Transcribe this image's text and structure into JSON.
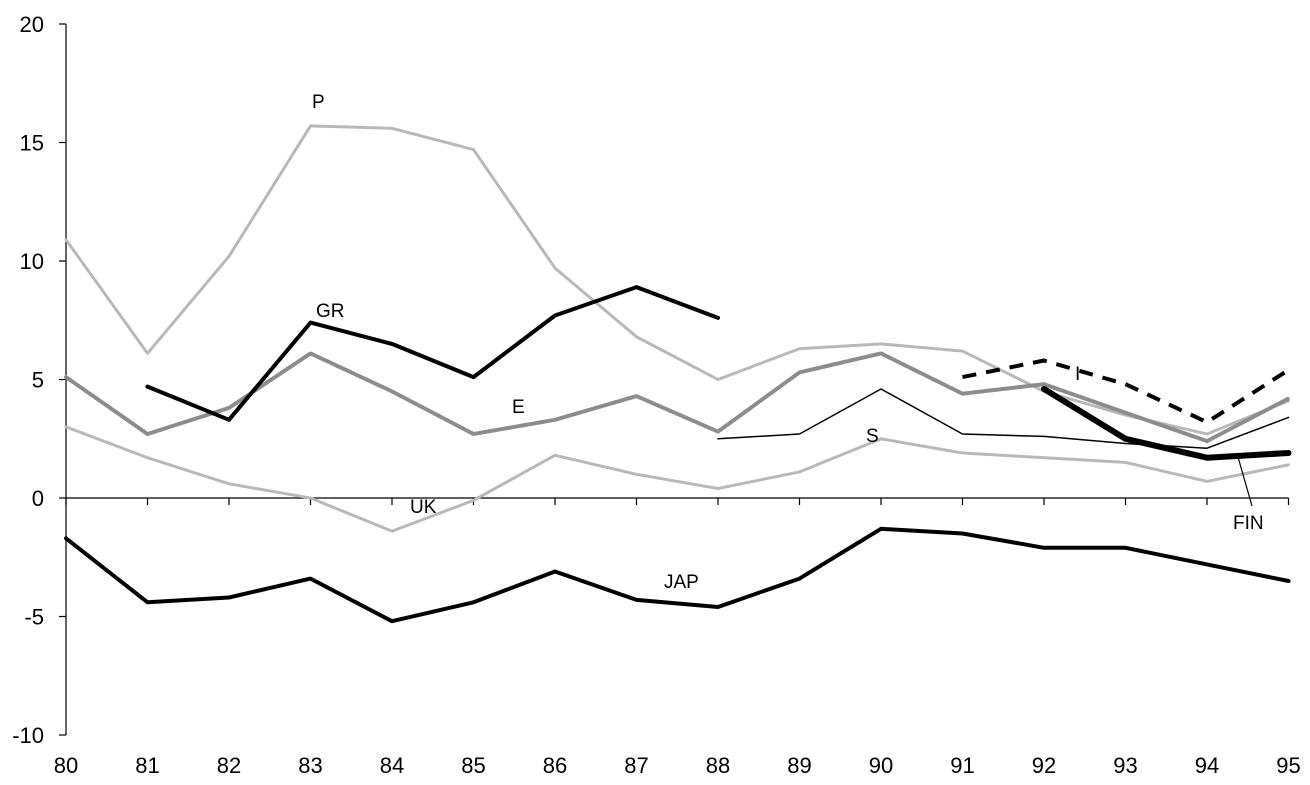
{
  "chart_data": {
    "type": "line",
    "title": "",
    "xlabel": "",
    "ylabel": "",
    "x": [
      "80",
      "81",
      "82",
      "83",
      "84",
      "85",
      "86",
      "87",
      "88",
      "89",
      "90",
      "91",
      "92",
      "93",
      "94",
      "95"
    ],
    "ylim": [
      -10,
      20
    ],
    "yticks": [
      -10,
      -5,
      0,
      5,
      10,
      15,
      20
    ],
    "grid": false,
    "legend": "none",
    "series": [
      {
        "name": "P",
        "color": "#b8b8b8",
        "style": "dotted-gray",
        "width": 3,
        "values": [
          10.9,
          6.1,
          10.2,
          15.7,
          15.6,
          14.7,
          9.7,
          6.8,
          5.0,
          6.3,
          6.5,
          6.2,
          4.5,
          3.5,
          2.7,
          4.1
        ]
      },
      {
        "name": "E",
        "color": "#8c8c8c",
        "style": "dotted-dark",
        "width": 4,
        "values": [
          5.1,
          2.7,
          3.8,
          6.1,
          4.5,
          2.7,
          3.3,
          4.3,
          2.8,
          5.3,
          6.1,
          4.4,
          4.8,
          3.6,
          2.4,
          4.2
        ]
      },
      {
        "name": "UK",
        "color": "#b8b8b8",
        "style": "dotted-gray",
        "width": 3,
        "values": [
          3.0,
          1.7,
          0.6,
          0.0,
          -1.4,
          -0.1,
          1.8,
          1.0,
          0.4,
          1.1,
          2.5,
          1.9,
          1.7,
          1.5,
          0.7,
          1.4
        ]
      },
      {
        "name": "GR",
        "color": "#000000",
        "style": "solid",
        "width": 4,
        "values": [
          null,
          4.7,
          3.3,
          7.4,
          6.5,
          5.1,
          7.7,
          8.9,
          7.6,
          null,
          null,
          null,
          null,
          null,
          null,
          null
        ]
      },
      {
        "name": "S",
        "color": "#000000",
        "style": "thin",
        "width": 1.5,
        "values": [
          null,
          null,
          null,
          null,
          null,
          null,
          null,
          null,
          2.5,
          2.7,
          4.6,
          2.7,
          2.6,
          2.3,
          2.1,
          3.4
        ]
      },
      {
        "name": "I",
        "color": "#000000",
        "style": "dashed",
        "width": 4,
        "values": [
          null,
          null,
          null,
          null,
          null,
          null,
          null,
          null,
          null,
          null,
          null,
          5.1,
          5.8,
          4.8,
          3.2,
          5.4
        ]
      },
      {
        "name": "FIN",
        "color": "#000000",
        "style": "thick",
        "width": 6,
        "values": [
          null,
          null,
          null,
          null,
          null,
          null,
          null,
          null,
          null,
          null,
          null,
          null,
          4.6,
          2.5,
          1.7,
          1.9
        ]
      },
      {
        "name": "JAP",
        "color": "#000000",
        "style": "solid",
        "width": 4,
        "values": [
          -1.7,
          -4.4,
          -4.2,
          -3.4,
          -5.2,
          -4.4,
          -3.1,
          -4.3,
          -4.6,
          -3.4,
          -1.3,
          -1.5,
          -2.1,
          -2.1,
          -2.8,
          -3.5
        ]
      }
    ],
    "annotations": [
      {
        "text": "P",
        "series": "P"
      },
      {
        "text": "GR",
        "series": "GR"
      },
      {
        "text": "E",
        "series": "E"
      },
      {
        "text": "UK",
        "series": "UK"
      },
      {
        "text": "S",
        "series": "S"
      },
      {
        "text": "I",
        "series": "I"
      },
      {
        "text": "FIN",
        "series": "FIN"
      },
      {
        "text": "JAP",
        "series": "JAP"
      }
    ]
  }
}
